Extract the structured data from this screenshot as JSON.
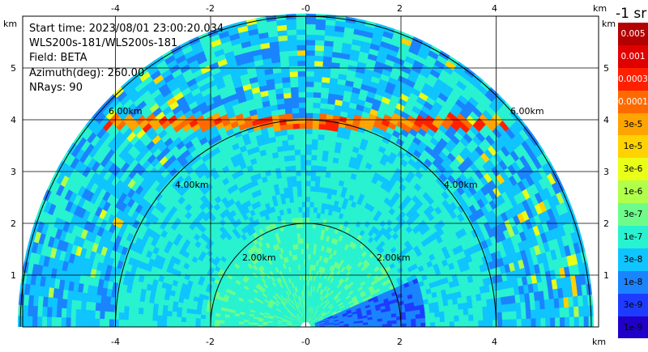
{
  "info": {
    "start_time": "Start time: 2023/08/01 23:00:20.034",
    "device": "WLS200s-181/WLS200s-181",
    "field": "Field: BETA",
    "azimuth": "Azimuth(deg): 260.00",
    "nrays": "NRays: 90"
  },
  "axes": {
    "unit_top_left": "km",
    "unit_top_right": "km",
    "unit_right_top": "km",
    "unit_bottom_right": "km",
    "x_ticks": [
      "-4",
      "-2",
      "-0",
      "2",
      "4"
    ],
    "y_ticks": [
      "5",
      "4",
      "3",
      "2",
      "1"
    ],
    "y_ticks_right": [
      "5",
      "4",
      "3",
      "2",
      "1"
    ]
  },
  "range_rings": {
    "ring_2": "2.00km",
    "ring_4": "4.00km",
    "ring_6": "6.00km"
  },
  "colorbar": {
    "title": "-1 sr",
    "labels": [
      "0.005",
      "0.001",
      "0.0003",
      "0.0001",
      "3e-5",
      "1e-5",
      "3e-6",
      "1e-6",
      "3e-7",
      "1e-7",
      "3e-8",
      "1e-8",
      "3e-9",
      "1e-9"
    ],
    "colors": [
      "#b40000",
      "#e10000",
      "#ff2000",
      "#ff6a00",
      "#ffa400",
      "#ffd200",
      "#e9ff18",
      "#b0ff4a",
      "#6dfc8a",
      "#28f2d0",
      "#0fc4ff",
      "#1a84ff",
      "#1e3cff",
      "#2000c8"
    ]
  },
  "chart_data": {
    "type": "heatmap",
    "x_range": [
      -6.05,
      6.05
    ],
    "y_range": [
      0,
      6.05
    ],
    "x_unit": "km",
    "y_unit": "km",
    "range_rings_km": [
      2,
      4,
      6
    ],
    "field": "BETA",
    "azimuth_deg": 260.0,
    "n_rays": 90,
    "max_range_km": 6.05
  }
}
